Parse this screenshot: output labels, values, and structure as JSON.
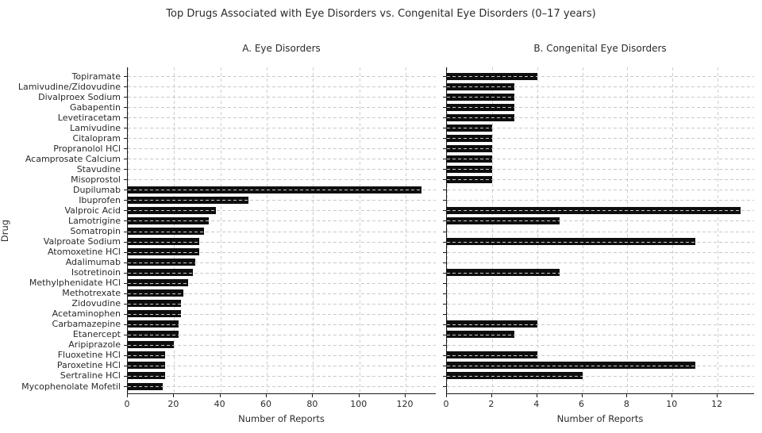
{
  "chart_data": {
    "type": "bar",
    "orientation": "horizontal",
    "title": "Top Drugs Associated with Eye Disorders vs. Congenital Eye Disorders (0–17 years)",
    "ylabel": "Drug",
    "xlabel": "Number of Reports",
    "grid": "dashed",
    "bar_color": "#0e0e0e",
    "legend_position": "none",
    "categories": [
      "Topiramate",
      "Lamivudine/Zidovudine",
      "Divalproex Sodium",
      "Gabapentin",
      "Levetiracetam",
      "Lamivudine",
      "Citalopram",
      "Propranolol HCl",
      "Acamprosate Calcium",
      "Stavudine",
      "Misoprostol",
      "Dupilumab",
      "Ibuprofen",
      "Valproic Acid",
      "Lamotrigine",
      "Somatropin",
      "Valproate Sodium",
      "Atomoxetine HCl",
      "Adalimumab",
      "Isotretinoin",
      "Methylphenidate HCl",
      "Methotrexate",
      "Zidovudine",
      "Acetaminophen",
      "Carbamazepine",
      "Etanercept",
      "Aripiprazole",
      "Fluoxetine HCl",
      "Paroxetine HCl",
      "Sertraline HCl",
      "Mycophenolate Mofetil"
    ],
    "panels": [
      {
        "label": "A. Eye Disorders",
        "values": [
          0,
          0,
          0,
          0,
          0,
          0,
          0,
          0,
          0,
          0,
          0,
          127,
          52,
          38,
          35,
          33,
          31,
          31,
          29,
          28,
          26,
          24,
          23,
          23,
          22,
          22,
          20,
          16,
          16,
          16,
          15
        ],
        "xticks": [
          0,
          20,
          40,
          60,
          80,
          100,
          120
        ],
        "xlim": [
          0,
          133.35
        ]
      },
      {
        "label": "B. Congenital Eye Disorders",
        "values": [
          4,
          3,
          3,
          3,
          3,
          2,
          2,
          2,
          2,
          2,
          2,
          0,
          0,
          13,
          5,
          0,
          11,
          0,
          0,
          5,
          0,
          0,
          0,
          0,
          4,
          3,
          0,
          4,
          11,
          6,
          0
        ],
        "xticks": [
          0,
          2,
          4,
          6,
          8,
          10,
          12
        ],
        "xlim": [
          0,
          13.65
        ]
      }
    ]
  }
}
